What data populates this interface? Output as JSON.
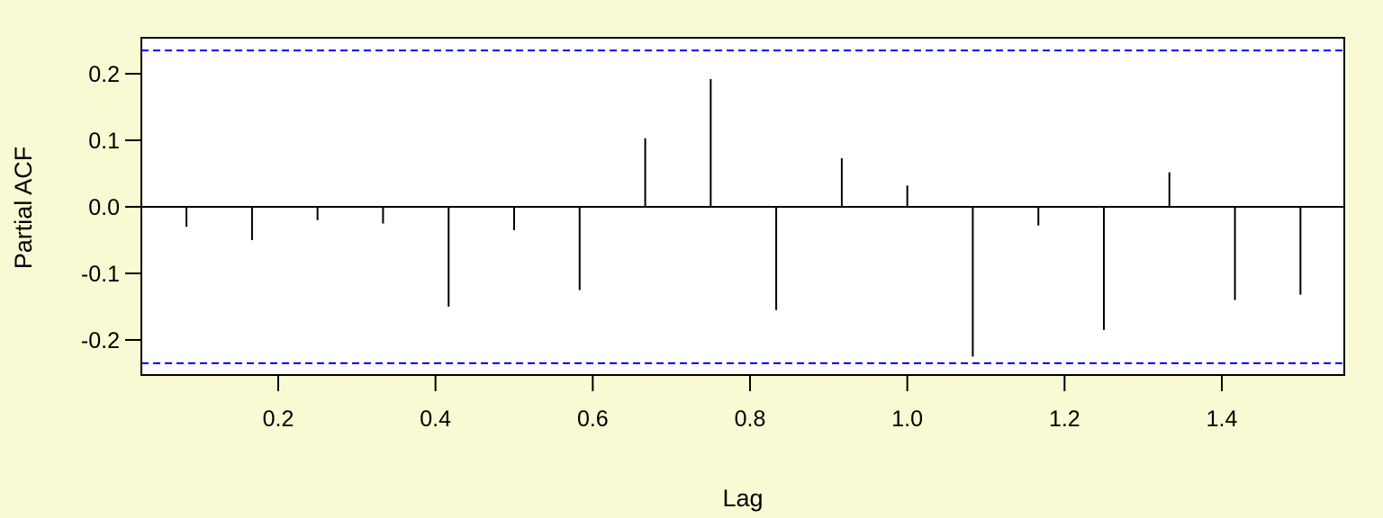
{
  "chart_data": {
    "type": "bar",
    "title": "",
    "xlabel": "Lag",
    "ylabel": "Partial ACF",
    "xlim": [
      0.03,
      1.55
    ],
    "ylim": [
      -0.25,
      0.25
    ],
    "x_ticks": [
      0.2,
      0.4,
      0.6,
      0.8,
      1.0,
      1.2,
      1.4
    ],
    "x_tick_labels": [
      "0.2",
      "0.4",
      "0.6",
      "0.8",
      "1.0",
      "1.2",
      "1.4"
    ],
    "y_ticks": [
      -0.2,
      -0.1,
      0.0,
      0.1,
      0.2
    ],
    "y_tick_labels": [
      "-0.2",
      "-0.1",
      "0.0",
      "0.1",
      "0.2"
    ],
    "confidence_bound": 0.235,
    "grid": false,
    "legend": "none",
    "colors": {
      "background": "#f9f9d3",
      "plot_area": "#ffffff",
      "bars": "#000000",
      "confidence_lines": "#0000ff"
    },
    "series": [
      {
        "x": [
          0.0833,
          0.1667,
          0.25,
          0.3333,
          0.4167,
          0.5,
          0.5833,
          0.6667,
          0.75,
          0.8333,
          0.9167,
          1.0,
          1.0833,
          1.1667,
          1.25,
          1.3333,
          1.4167,
          1.5
        ],
        "values": [
          -0.03,
          -0.05,
          -0.02,
          -0.025,
          -0.15,
          -0.035,
          -0.125,
          0.103,
          0.192,
          -0.155,
          0.073,
          0.032,
          -0.225,
          -0.028,
          -0.185,
          0.052,
          -0.14,
          -0.132
        ]
      }
    ]
  }
}
